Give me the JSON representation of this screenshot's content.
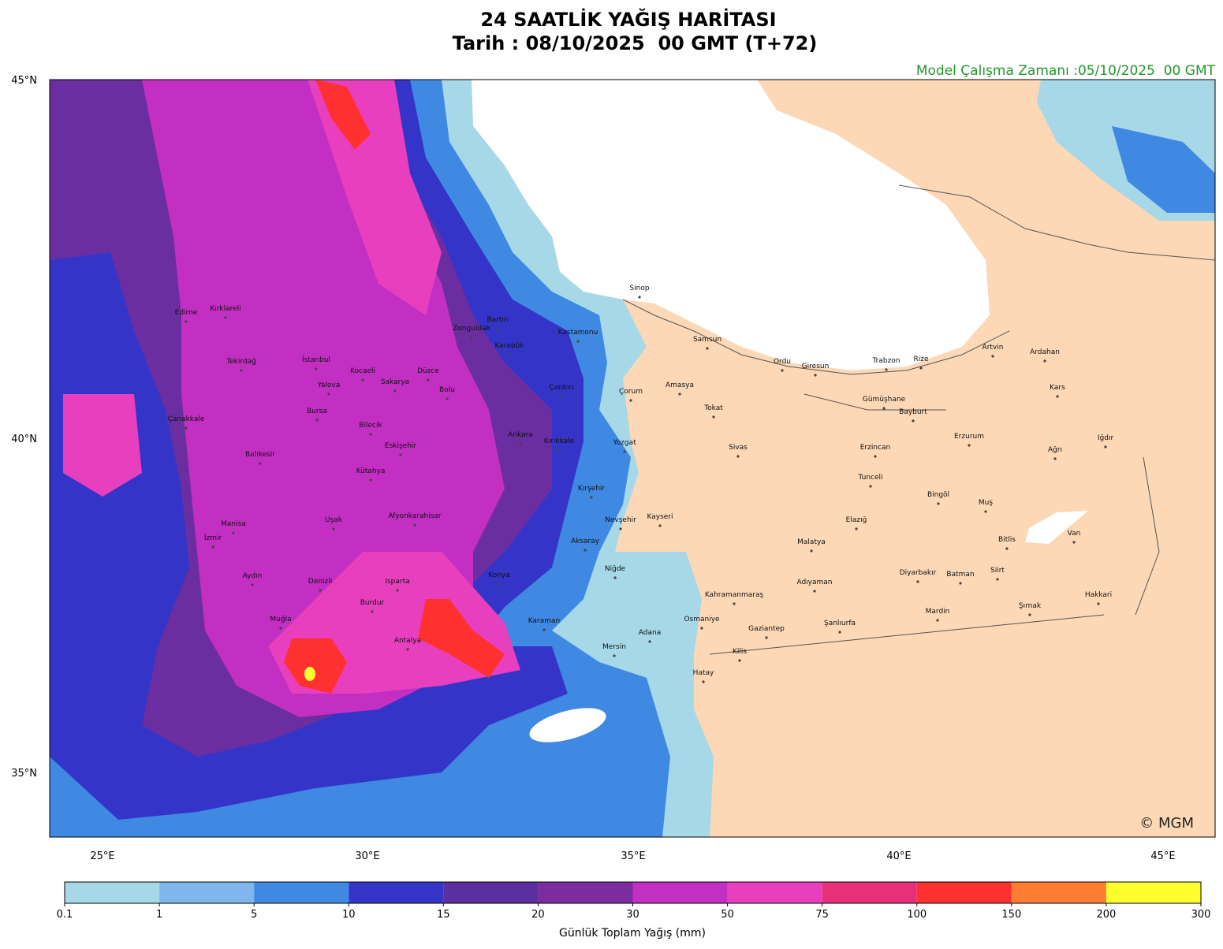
{
  "header": {
    "title": "24 SAATLİK YAĞIŞ HARİTASI",
    "subtitle": "Tarih : 08/10/2025  00 GMT (T+72)",
    "model_run": "Model Çalışma Zamanı :05/10/2025  00 GMT"
  },
  "map": {
    "lat_labels": [
      "45°N",
      "40°N",
      "35°N"
    ],
    "lon_labels": [
      "25°E",
      "30°E",
      "35°E",
      "40°E",
      "45°E"
    ],
    "cities": [
      "Sinop",
      "Kırklareli",
      "Edirne",
      "Bartın",
      "Zonguldak",
      "Kastamonu",
      "Samsun",
      "Karabük",
      "Artvin",
      "Ardahan",
      "Rize",
      "Trabzon",
      "Ordu",
      "Giresun",
      "İstanbul",
      "Tekirdağ",
      "Kocaeli",
      "Düzce",
      "Yalova",
      "Sakarya",
      "Amasya",
      "Bolu",
      "Çankırı",
      "Çorum",
      "Kars",
      "Gümüşhane",
      "Tokat",
      "Bayburt",
      "Bursa",
      "Çanakkale",
      "Bilecik",
      "Ankara",
      "Erzurum",
      "Iğdır",
      "Kırıkkale",
      "Yozgat",
      "Eskişehir",
      "Sivas",
      "Erzincan",
      "Ağrı",
      "Balıkesir",
      "Kütahya",
      "Tunceli",
      "Kırşehir",
      "Bingöl",
      "Muş",
      "Afyonkarahisar",
      "Nevşehir",
      "Kayseri",
      "Uşak",
      "Elazığ",
      "Manisa",
      "İzmir",
      "Bitlis",
      "Van",
      "Malatya",
      "Aksaray",
      "Niğde",
      "Diyarbakır",
      "Batman",
      "Siirt",
      "Konya",
      "Aydın",
      "Denizli",
      "Isparta",
      "Adıyaman",
      "Hakkari",
      "Kahramanmaraş",
      "Burdur",
      "Şırnak",
      "Mardin",
      "Muğla",
      "Karaman",
      "Osmaniye",
      "Şanlıurfa",
      "Gaziantep",
      "Adana",
      "Antalya",
      "Mersin",
      "Kilis",
      "Hatay"
    ],
    "credit": "© MGM"
  },
  "colorbar": {
    "ticks": [
      0.1,
      1,
      5,
      10,
      15,
      20,
      30,
      50,
      75,
      100,
      150,
      200,
      300
    ],
    "colors": [
      "#a6d8e8",
      "#7fb6ec",
      "#3f89e3",
      "#3434c8",
      "#5a2fa0",
      "#7d2c9f",
      "#c22fc2",
      "#e83fbf",
      "#e8307a",
      "#ff3030",
      "#ff7c30",
      "#ffff30"
    ],
    "label": "Günlük Toplam Yağış (mm)"
  }
}
